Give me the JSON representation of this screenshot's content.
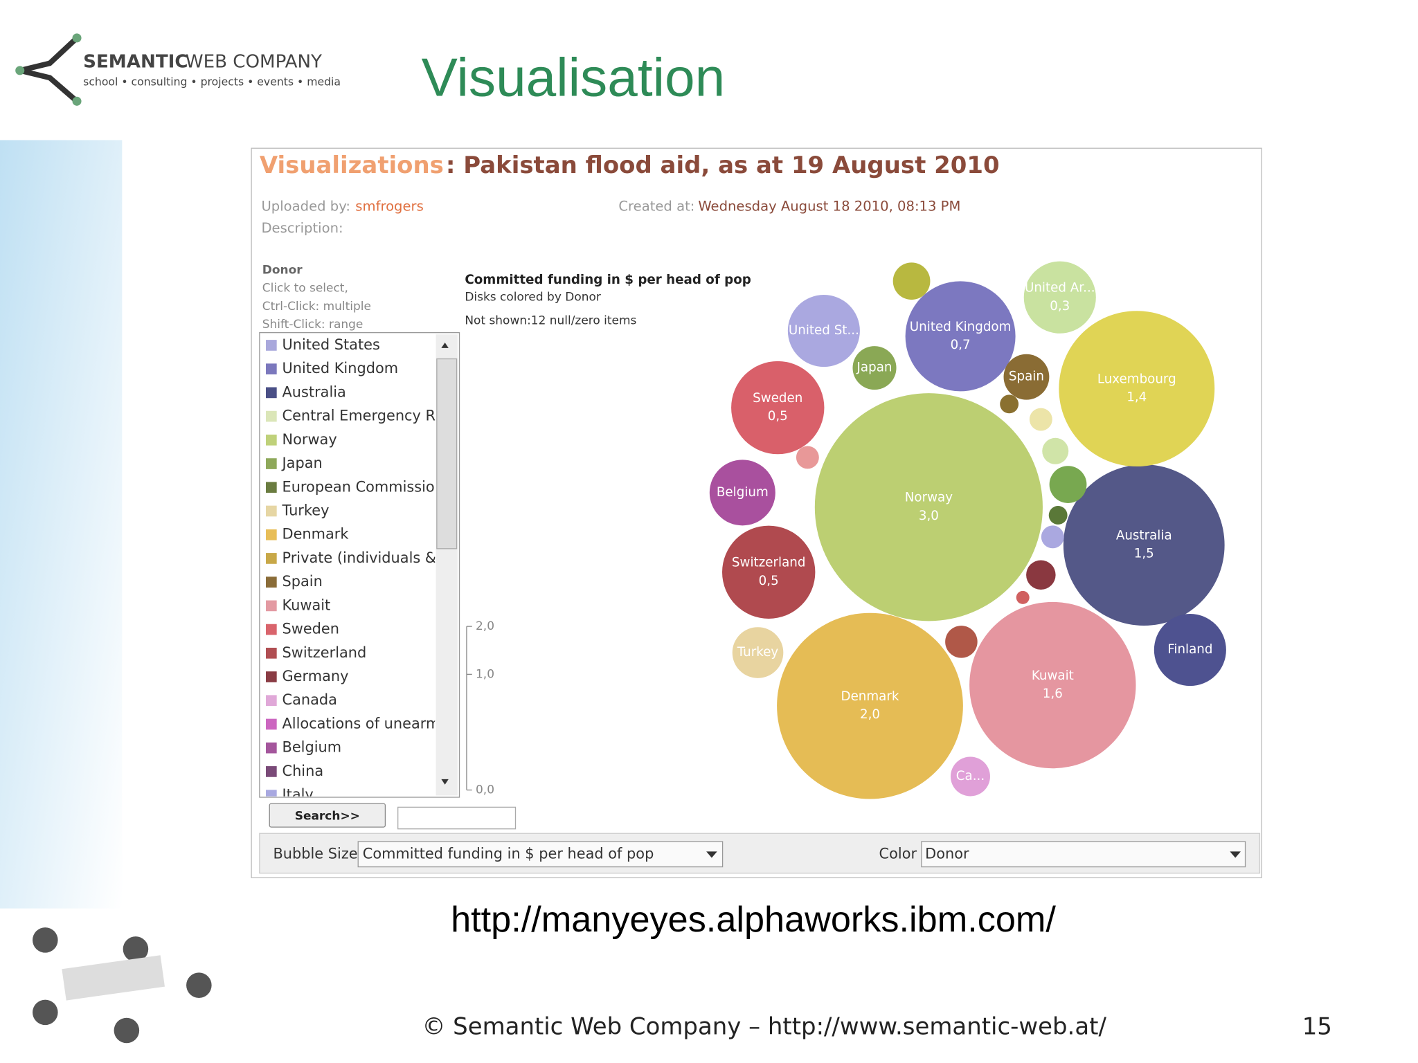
{
  "header": {
    "company_bold": "SEMANTIC",
    "company_rest": "WEB COMPANY",
    "tagline": "school • consulting • projects • events • media",
    "title": "Visualisation"
  },
  "app": {
    "heading_prefix": "Visualizations",
    "heading": ": Pakistan flood aid, as at 19 August 2010",
    "uploaded_label": "Uploaded by:",
    "uploader": "smfrogers",
    "created_label": "Created at:",
    "created": "Wednesday August 18 2010, 08:13 PM",
    "description_label": "Description:",
    "donor_heading": "Donor",
    "hints": [
      "Click to select,",
      "Ctrl-Click: multiple",
      "Shift-Click: range"
    ],
    "donors": [
      {
        "name": "United States",
        "color": "#a9a8dc"
      },
      {
        "name": "United Kingdom",
        "color": "#7b78bd"
      },
      {
        "name": "Australia",
        "color": "#4a4f86"
      },
      {
        "name": "Central Emergency Re",
        "color": "#dbe6b8"
      },
      {
        "name": "Norway",
        "color": "#bfd17a"
      },
      {
        "name": "Japan",
        "color": "#8ea85a"
      },
      {
        "name": "European Commission",
        "color": "#6a7c40"
      },
      {
        "name": "Turkey",
        "color": "#e6d6a4"
      },
      {
        "name": "Denmark",
        "color": "#e8be58"
      },
      {
        "name": "Private (individuals & c",
        "color": "#c8a848"
      },
      {
        "name": "Spain",
        "color": "#8a6c38"
      },
      {
        "name": "Kuwait",
        "color": "#e39aa2"
      },
      {
        "name": "Sweden",
        "color": "#d9646c"
      },
      {
        "name": "Switzerland",
        "color": "#b04e52"
      },
      {
        "name": "Germany",
        "color": "#8a3c44"
      },
      {
        "name": "Canada",
        "color": "#e0a8d8"
      },
      {
        "name": "Allocations of unearma",
        "color": "#cc66c0"
      },
      {
        "name": "Belgium",
        "color": "#a4569c"
      },
      {
        "name": "China",
        "color": "#7a4a78"
      },
      {
        "name": "Italy",
        "color": "#a8a8e0"
      }
    ],
    "search_button": "Search>>",
    "bubble_size_label": "Bubble Size",
    "bubble_size_value": "Committed funding in $ per head of pop",
    "color_label": "Color",
    "color_value": "Donor"
  },
  "chart_data": {
    "type": "bubble",
    "title": "Committed funding in $ per head of pop",
    "subtitle": "Disks colored by Donor",
    "note": "Not shown:12 null/zero items",
    "categories": [
      "Norway",
      "Denmark",
      "Kuwait",
      "Australia",
      "Luxembourg",
      "United Kingdom",
      "Sweden",
      "Switzerland",
      "United Ar...",
      "United St...",
      "Finland",
      "Belgium",
      "Turkey",
      "Japan",
      "Spain",
      "Ca...",
      null,
      null,
      null,
      null,
      null,
      null,
      null,
      null,
      null,
      null,
      null
    ],
    "values": [
      3,
      2,
      1.6,
      1.5,
      1.4,
      0.7,
      0.5,
      0.5,
      0.3,
      0.3,
      0.3,
      0.25,
      0.15,
      0.11,
      0.12,
      0.09,
      0.08,
      0.03,
      0.04,
      0.08,
      0.02,
      0.03,
      0.05,
      0.01,
      0.06,
      0.03,
      0.02
    ],
    "value_labels": [
      "3,0",
      "2,0",
      "1,6",
      "1,5",
      "1,4",
      "0,7",
      "0,5",
      "0,5",
      "0,3",
      null,
      null,
      null,
      null,
      null,
      null,
      null,
      null,
      null,
      null,
      null,
      null,
      null,
      null,
      null,
      null,
      null,
      null
    ],
    "colors": [
      "#bccf72",
      "#e5bc55",
      "#e596a0",
      "#545888",
      "#e0d455",
      "#7c78c0",
      "#d9606a",
      "#b04a4f",
      "#c9e2a0",
      "#aaa8e0",
      "#4e5290",
      "#a9509e",
      "#e8d4a0",
      "#8aa855",
      "#8a6c34",
      "#e0a0d8",
      "#b8b840",
      "#ece4a8",
      "#d0e4a8",
      "#78a850",
      "#5a7838",
      "#aaa8e0",
      "#8a3840",
      "#d06060",
      "#b05848",
      "#e89898",
      "#8a7030"
    ],
    "size_ticks": [
      {
        "value": 2,
        "label": "2,0"
      },
      {
        "value": 1,
        "label": "1,0"
      },
      {
        "value": 0,
        "label": "0,0"
      }
    ]
  },
  "footer": {
    "url": "http://manyeyes.alphaworks.ibm.com/",
    "copyright": "© Semantic Web Company – http://www.semantic-web.at/",
    "page": "15"
  }
}
